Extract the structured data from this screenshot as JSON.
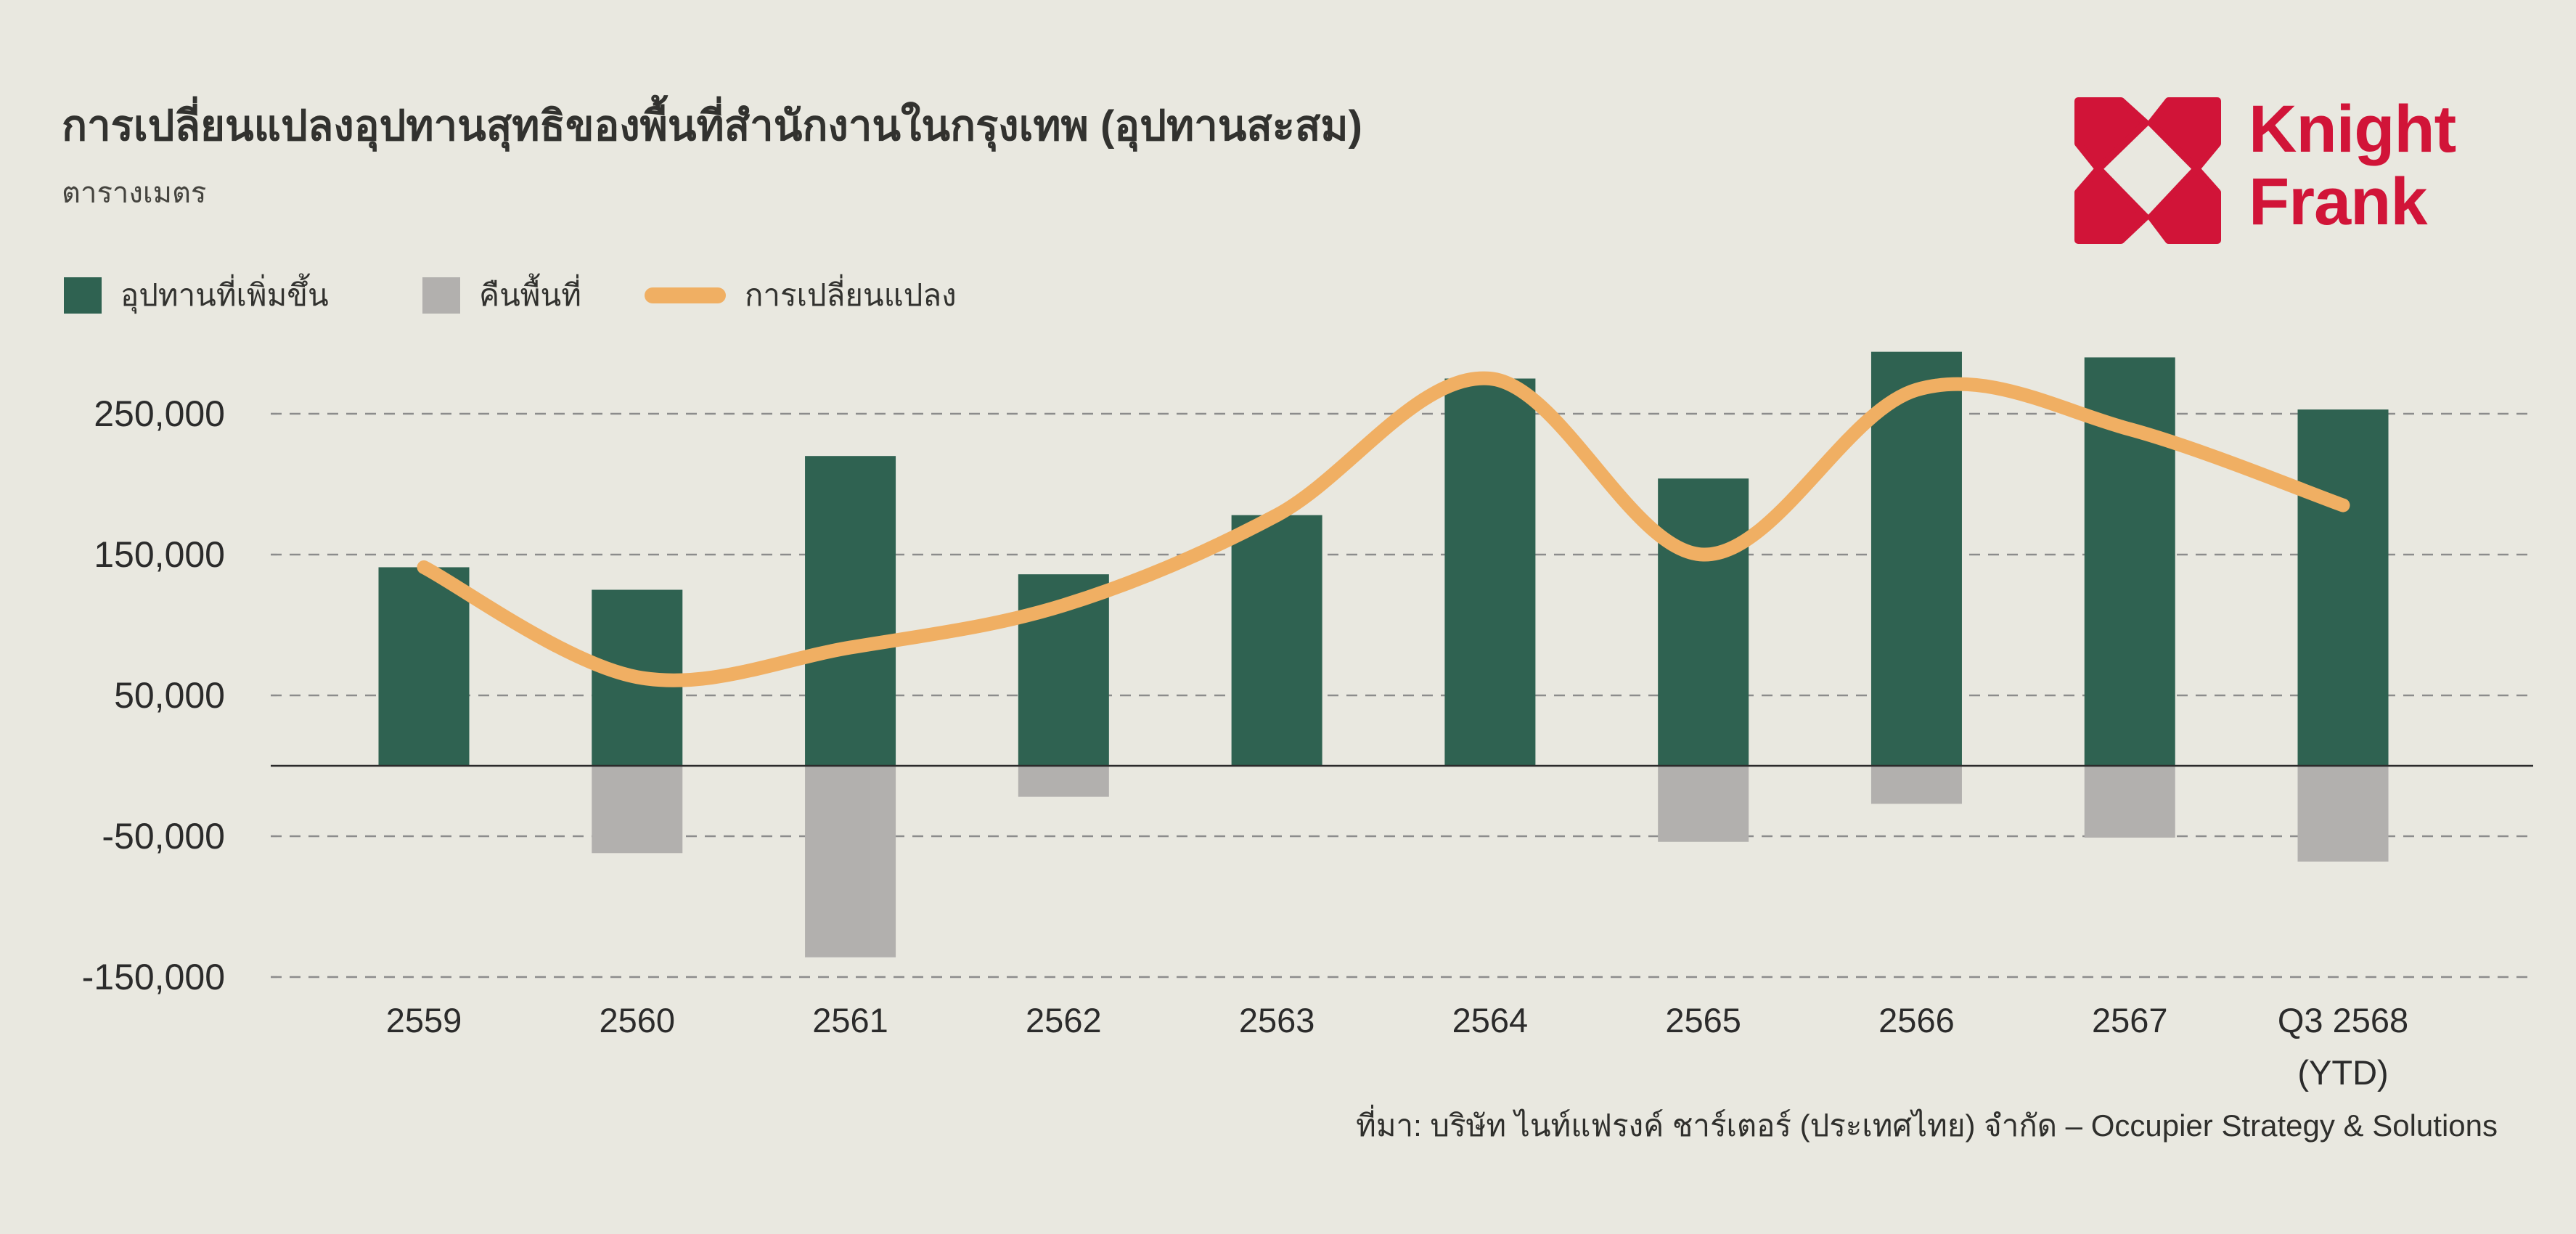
{
  "header": {
    "title": "การเปลี่ยนแปลงอุปทานสุทธิของพื้นที่สำนักงานในกรุงเทพ (อุปทานสะสม)",
    "subtitle": "ตารางเมตร"
  },
  "logo": {
    "line1": "Knight",
    "line2": "Frank",
    "color": "#D11438"
  },
  "legend": {
    "items": [
      {
        "label": "อุปทานที่เพิ่มขึ้น",
        "swatch": "bar",
        "color": "#2F6251"
      },
      {
        "label": "คืนพื้นที่",
        "swatch": "bar",
        "color": "#B2B0AE"
      },
      {
        "label": "การเปลี่ยนแปลง",
        "swatch": "line",
        "color": "#F0AF63"
      }
    ]
  },
  "source": "ที่มา: บริษัท ไนท์แฟรงค์ ชาร์เตอร์ (ประเทศไทย) จำกัด – Occupier Strategy & Solutions",
  "colors": {
    "background": "#E9E8E0",
    "grid": "#8C8C8C",
    "zero_line": "#2B2B2B",
    "axis_text": "#2B2B2B",
    "title_text": "#32322F",
    "brand_red": "#D11438"
  },
  "chart_data": {
    "type": "combo",
    "categories": [
      "2559",
      "2560",
      "2561",
      "2562",
      "2563",
      "2564",
      "2565",
      "2566",
      "2567",
      "Q3 2568"
    ],
    "x_sublabels": [
      "",
      "",
      "",
      "",
      "",
      "",
      "",
      "",
      "",
      "(YTD)"
    ],
    "series": [
      {
        "name": "อุปทานที่เพิ่มขึ้น",
        "type": "bar",
        "color": "#2F6251",
        "values": [
          141000,
          125000,
          220000,
          136000,
          178000,
          275000,
          204000,
          294000,
          290000,
          253000
        ]
      },
      {
        "name": "คืนพื้นที่",
        "type": "bar",
        "color": "#B2B0AE",
        "values": [
          0,
          -62000,
          -136000,
          -22000,
          0,
          0,
          -54000,
          -27000,
          -51000,
          -68000
        ]
      },
      {
        "name": "การเปลี่ยนแปลง",
        "type": "line",
        "color": "#F0AF63",
        "values": [
          141000,
          63000,
          84000,
          114000,
          178000,
          275000,
          150000,
          267000,
          239000,
          185000
        ]
      }
    ],
    "title": "การเปลี่ยนแปลงอุปทานสุทธิของพื้นที่สำนักงานในกรุงเทพ (อุปทานสะสม)",
    "xlabel": "",
    "ylabel": "ตารางเมตร",
    "yticks": [
      250000,
      150000,
      50000,
      -50000,
      -150000
    ],
    "ylim": [
      -175000,
      310000
    ],
    "grid": "dashed-horizontal",
    "legend_position": "top-left"
  }
}
